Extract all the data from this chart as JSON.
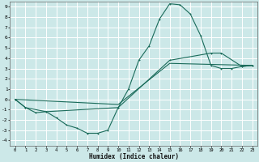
{
  "title": "",
  "xlabel": "Humidex (Indice chaleur)",
  "bg_color": "#cce8e8",
  "grid_color": "#ffffff",
  "line_color": "#1a6b5a",
  "xlim": [
    -0.5,
    23.5
  ],
  "ylim": [
    -4.5,
    9.5
  ],
  "xticks": [
    0,
    1,
    2,
    3,
    4,
    5,
    6,
    7,
    8,
    9,
    10,
    11,
    12,
    13,
    14,
    15,
    16,
    17,
    18,
    19,
    20,
    21,
    22,
    23
  ],
  "yticks": [
    -4,
    -3,
    -2,
    -1,
    0,
    1,
    2,
    3,
    4,
    5,
    6,
    7,
    8,
    9
  ],
  "line1_x": [
    0,
    1,
    2,
    3,
    4,
    5,
    6,
    7,
    8,
    9,
    10,
    11,
    12,
    13,
    14,
    15,
    16,
    17,
    18,
    19,
    20,
    21,
    22,
    23
  ],
  "line1_y": [
    0,
    -0.8,
    -1.3,
    -1.2,
    -1.8,
    -2.5,
    -2.8,
    -3.3,
    -3.3,
    -3.0,
    -0.8,
    1.0,
    3.8,
    5.2,
    7.8,
    9.3,
    9.2,
    8.3,
    6.2,
    3.3,
    3.0,
    3.0,
    3.2,
    3.3
  ],
  "line2_x": [
    0,
    1,
    3,
    10,
    15,
    19,
    20,
    22,
    23
  ],
  "line2_y": [
    0,
    -0.8,
    -1.2,
    -0.8,
    3.8,
    4.5,
    4.5,
    3.2,
    3.3
  ],
  "line3_x": [
    0,
    10,
    15,
    23
  ],
  "line3_y": [
    0,
    -0.5,
    3.5,
    3.3
  ]
}
